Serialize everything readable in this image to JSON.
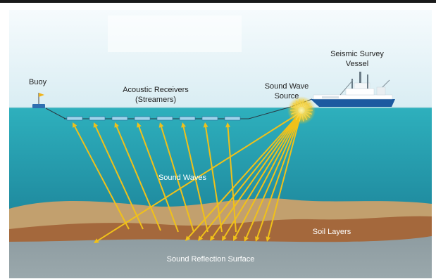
{
  "labels": {
    "buoy": "Buoy",
    "receivers_1": "Acoustic Receivers",
    "receivers_2": "(Streamers)",
    "source_1": "Sound Wave",
    "source_2": "Source",
    "vessel_1": "Seismic Survey",
    "vessel_2": "Vessel",
    "waves": "Sound Waves",
    "soil": "Soil Layers",
    "reflection": "Sound Reflection Surface"
  },
  "colors": {
    "sky": "#e8f3f7",
    "sea_top": "#2aa9b8",
    "sea_bottom": "#1d8096",
    "sand": "#c2a06e",
    "soil": "#a4683c",
    "bedrock": "#8f9da2",
    "ray": "#f0c11a",
    "ship_hull": "#1c5aa0"
  },
  "icons": [
    "buoy-icon",
    "flag-icon",
    "ship-icon",
    "streamer-icon",
    "sound-burst-icon"
  ]
}
